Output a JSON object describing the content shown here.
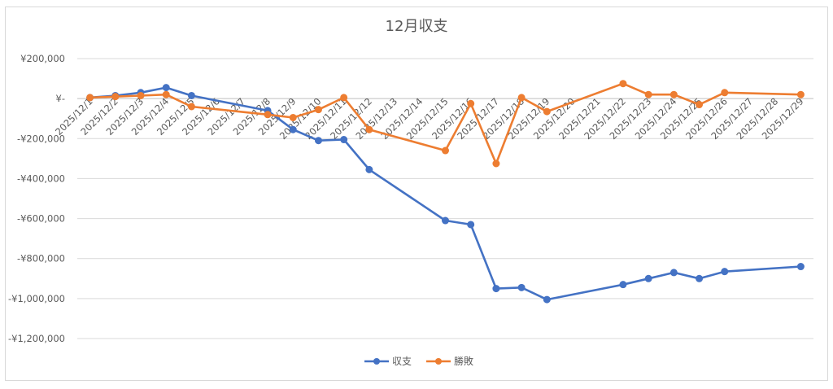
{
  "chart_data": {
    "type": "line",
    "title": "12月収支",
    "xlabel": "",
    "ylabel": "",
    "ylim": [
      -1200000,
      200000
    ],
    "yticks": [
      200000,
      0,
      -200000,
      -400000,
      -600000,
      -800000,
      -1000000,
      -1200000
    ],
    "ytick_labels": [
      "¥200,000",
      "¥-",
      "-¥200,000",
      "-¥400,000",
      "-¥600,000",
      "-¥800,000",
      "-¥1,000,000",
      "-¥1,200,000"
    ],
    "categories": [
      "2025/12/1",
      "2025/12/2",
      "2025/12/3",
      "2025/12/4",
      "2025/12/5",
      "2025/12/6",
      "2025/12/7",
      "2025/12/8",
      "2025/12/9",
      "2025/12/10",
      "2025/12/11",
      "2025/12/12",
      "2025/12/13",
      "2025/12/14",
      "2025/12/15",
      "2025/12/16",
      "2025/12/17",
      "2025/12/18",
      "2025/12/19",
      "2025/12/20",
      "2025/12/21",
      "2025/12/22",
      "2025/12/23",
      "2025/12/24",
      "2025/12/25",
      "2025/12/26",
      "2025/12/27",
      "2025/12/28",
      "2025/12/29"
    ],
    "grid": true,
    "legend_position": "bottom",
    "series": [
      {
        "name": "収支",
        "color": "#4472C4",
        "values": [
          5000,
          15000,
          30000,
          55000,
          15000,
          null,
          null,
          -60000,
          -155000,
          -210000,
          -205000,
          -355000,
          null,
          null,
          -610000,
          -630000,
          -950000,
          -945000,
          -1005000,
          null,
          null,
          -930000,
          -900000,
          -870000,
          -900000,
          -865000,
          null,
          null,
          -840000
        ]
      },
      {
        "name": "勝敗",
        "color": "#ED7D31",
        "values": [
          5000,
          10000,
          15000,
          20000,
          -40000,
          null,
          null,
          -80000,
          -95000,
          -55000,
          5000,
          -155000,
          null,
          null,
          -260000,
          -25000,
          -325000,
          5000,
          -65000,
          null,
          null,
          75000,
          20000,
          20000,
          -30000,
          30000,
          null,
          null,
          20000
        ]
      }
    ]
  }
}
